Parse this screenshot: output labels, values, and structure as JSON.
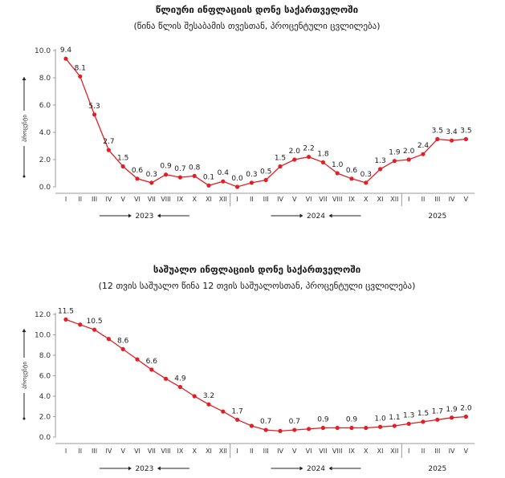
{
  "chart_data": [
    {
      "type": "line",
      "title": "წლიური ინფლაციის დონე საქართველოში",
      "subtitle": "(წინა წლის შესაბამის თვესთან, პროცენტული ცვლილება)",
      "ylabel": "პროცენტი",
      "ylim": [
        0,
        10
      ],
      "yticks": [
        "0.0",
        "2.0",
        "4.0",
        "6.0",
        "8.0",
        "10.0"
      ],
      "grid": false,
      "color": "#e31e24",
      "categories": [
        "I",
        "II",
        "III",
        "IV",
        "V",
        "VI",
        "VII",
        "VIII",
        "IX",
        "X",
        "XI",
        "XII",
        "I",
        "II",
        "III",
        "IV",
        "V",
        "VI",
        "VII",
        "VIII",
        "IX",
        "X",
        "XI",
        "XII",
        "I",
        "II",
        "III",
        "IV",
        "V"
      ],
      "values": [
        9.4,
        8.1,
        5.3,
        2.7,
        1.5,
        0.6,
        0.3,
        0.9,
        0.7,
        0.8,
        0.1,
        0.4,
        0.0,
        0.3,
        0.5,
        1.5,
        2.0,
        2.2,
        1.8,
        1.0,
        0.6,
        0.3,
        1.3,
        1.9,
        2.0,
        2.4,
        3.5,
        3.4,
        3.5
      ],
      "data_labels": [
        "9.4",
        "8.1",
        "5.3",
        "2.7",
        "1.5",
        "0.6",
        "0.3",
        "0.9",
        "0.7",
        "0.8",
        "0.1",
        "0.4",
        "0.0",
        "0.3",
        "0.5",
        "1.5",
        "2.0",
        "2.2",
        "1.8",
        "1.0",
        "0.6",
        "0.3",
        "1.3",
        "1.9",
        "2.0",
        "2.4",
        "3.5",
        "3.4",
        "3.5"
      ],
      "years": [
        {
          "label": "2023",
          "start": 0,
          "end": 11,
          "arrows": true
        },
        {
          "label": "2024",
          "start": 12,
          "end": 23,
          "arrows": true
        },
        {
          "label": "2025",
          "start": 24,
          "end": 28,
          "arrows": false
        }
      ]
    },
    {
      "type": "line",
      "title": "საშუალო ინფლაციის დონე საქართველოში",
      "subtitle": "(12 თვის საშუალო წინა 12 თვის საშუალოსთან, პროცენტული ცვლილება)",
      "ylabel": "პროცენტი",
      "ylim": [
        0,
        12
      ],
      "yticks": [
        "0.0",
        "2.0",
        "4.0",
        "6.0",
        "8.0",
        "10.0",
        "12.0"
      ],
      "grid": false,
      "color": "#e31e24",
      "categories": [
        "I",
        "II",
        "III",
        "IV",
        "V",
        "VI",
        "VII",
        "VIII",
        "IX",
        "X",
        "XI",
        "XII",
        "I",
        "II",
        "III",
        "IV",
        "V",
        "VI",
        "VII",
        "VIII",
        "IX",
        "X",
        "XI",
        "XII",
        "I",
        "II",
        "III",
        "IV",
        "V"
      ],
      "values": [
        11.5,
        11.0,
        10.5,
        9.6,
        8.6,
        7.6,
        6.6,
        5.7,
        4.9,
        4.0,
        3.2,
        2.5,
        1.7,
        1.1,
        0.7,
        0.6,
        0.7,
        0.8,
        0.9,
        0.9,
        0.9,
        0.9,
        1.0,
        1.1,
        1.3,
        1.5,
        1.7,
        1.9,
        2.0
      ],
      "data_labels": [
        "11.5",
        "",
        "10.5",
        "",
        "8.6",
        "",
        "6.6",
        "",
        "4.9",
        "",
        "3.2",
        "",
        "1.7",
        "",
        "0.7",
        "",
        "0.7",
        "",
        "0.9",
        "",
        "0.9",
        "",
        "1.0",
        "1.1",
        "1.3",
        "1.5",
        "1.7",
        "1.9",
        "2.0"
      ],
      "years": [
        {
          "label": "2023",
          "start": 0,
          "end": 11,
          "arrows": true
        },
        {
          "label": "2024",
          "start": 12,
          "end": 23,
          "arrows": true
        },
        {
          "label": "2025",
          "start": 24,
          "end": 28,
          "arrows": false
        }
      ]
    }
  ]
}
